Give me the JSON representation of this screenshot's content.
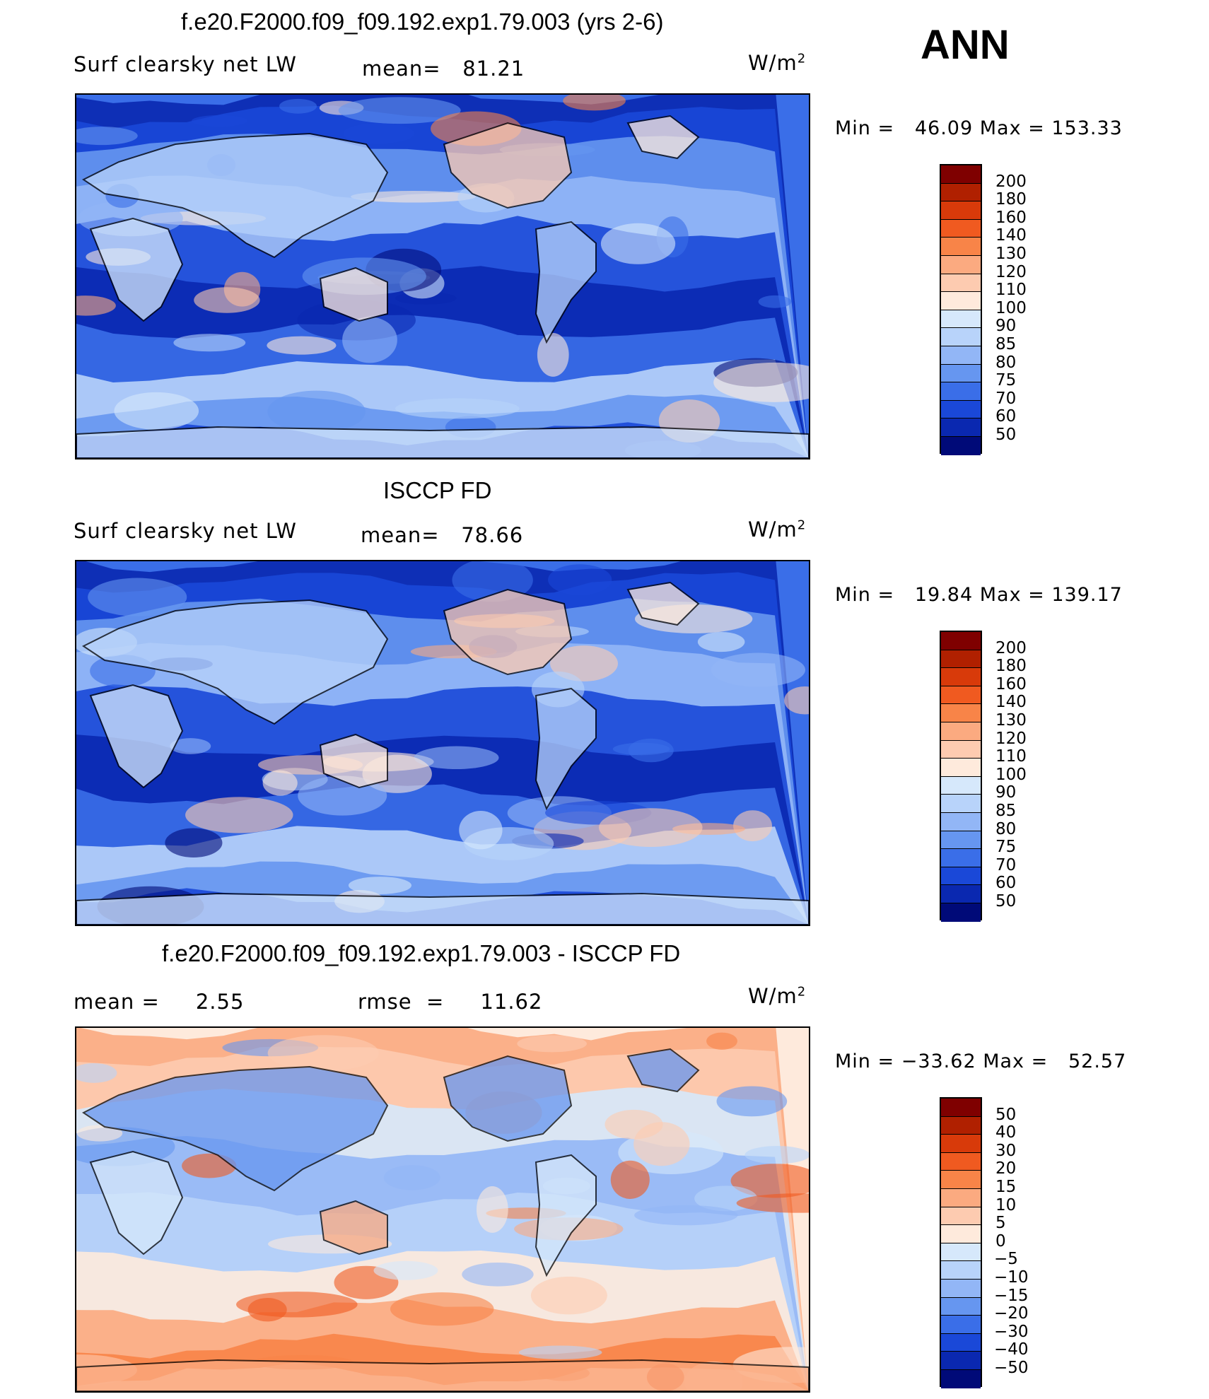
{
  "season": "ANN",
  "panels": [
    {
      "title": "f.e20.F2000.f09_f09.192.exp1.79.003 (yrs 2-6)",
      "left_label": "Surf clearsky net LW",
      "center_label": "mean=   81.21",
      "units": "W/m",
      "units_sup": "2",
      "minmax": "Min =   46.09 Max = 153.33",
      "colorbar": {
        "levels": [
          "200",
          "180",
          "160",
          "140",
          "130",
          "120",
          "110",
          "100",
          "90",
          "85",
          "80",
          "75",
          "70",
          "60",
          "50"
        ],
        "colors": [
          "#7f0000",
          "#b02000",
          "#d83a0a",
          "#f05a20",
          "#f88448",
          "#fbaa80",
          "#fdcbb0",
          "#feeadc",
          "#d6e8fb",
          "#b8d3fa",
          "#92b6f6",
          "#6696f0",
          "#3a6ee8",
          "#1a48d8",
          "#0a28b0",
          "#000a78"
        ]
      },
      "field_palette": [
        "#000a78",
        "#0a28b0",
        "#1a48d8",
        "#3a6ee8",
        "#6696f0",
        "#92b6f6",
        "#b8d3fa",
        "#d6e8fb",
        "#feeadc",
        "#fdcbb0",
        "#fbaa80",
        "#f88448"
      ]
    },
    {
      "title": "ISCCP FD",
      "left_label": "Surf clearsky net LW",
      "center_label": "mean=   78.66",
      "units": "W/m",
      "units_sup": "2",
      "minmax": "Min =   19.84 Max = 139.17",
      "colorbar": {
        "levels": [
          "200",
          "180",
          "160",
          "140",
          "130",
          "120",
          "110",
          "100",
          "90",
          "85",
          "80",
          "75",
          "70",
          "60",
          "50"
        ],
        "colors": [
          "#7f0000",
          "#b02000",
          "#d83a0a",
          "#f05a20",
          "#f88448",
          "#fbaa80",
          "#fdcbb0",
          "#feeadc",
          "#d6e8fb",
          "#b8d3fa",
          "#92b6f6",
          "#6696f0",
          "#3a6ee8",
          "#1a48d8",
          "#0a28b0",
          "#000a78"
        ]
      },
      "field_palette": [
        "#000a78",
        "#0a28b0",
        "#1a48d8",
        "#3a6ee8",
        "#6696f0",
        "#92b6f6",
        "#b8d3fa",
        "#d6e8fb",
        "#feeadc",
        "#fdcbb0",
        "#fbaa80"
      ]
    },
    {
      "title": "f.e20.F2000.f09_f09.192.exp1.79.003 - ISCCP FD",
      "left_label": "mean =     2.55",
      "center_label": "rmse  =     11.62",
      "units": "W/m",
      "units_sup": "2",
      "minmax": "Min = −33.62 Max =   52.57",
      "colorbar": {
        "levels": [
          "50",
          "40",
          "30",
          "20",
          "15",
          "10",
          "5",
          "0",
          "−5",
          "−10",
          "−15",
          "−20",
          "−30",
          "−40",
          "−50"
        ],
        "colors": [
          "#7f0000",
          "#b02000",
          "#d83a0a",
          "#f05a20",
          "#f88448",
          "#fbaa80",
          "#fdcbb0",
          "#feeadc",
          "#d6e8fb",
          "#b8d3fa",
          "#92b6f6",
          "#6696f0",
          "#3a6ee8",
          "#1a48d8",
          "#0a28b0",
          "#000a78"
        ]
      },
      "field_palette": [
        "#6696f0",
        "#92b6f6",
        "#b8d3fa",
        "#d6e8fb",
        "#feeadc",
        "#fdcbb0",
        "#fbaa80",
        "#f88448",
        "#f05a20"
      ]
    }
  ],
  "chart_data": [
    {
      "type": "heatmap",
      "title": "f.e20.F2000.f09_f09.192.exp1.79.003 (yrs 2-6)",
      "variable": "Surf clearsky net LW",
      "units": "W/m2",
      "mean": 81.21,
      "min": 46.09,
      "max": 153.33,
      "levels": [
        50,
        60,
        70,
        75,
        80,
        85,
        90,
        100,
        110,
        120,
        130,
        140,
        160,
        180,
        200
      ]
    },
    {
      "type": "heatmap",
      "title": "ISCCP FD",
      "variable": "Surf clearsky net LW",
      "units": "W/m2",
      "mean": 78.66,
      "min": 19.84,
      "max": 139.17,
      "levels": [
        50,
        60,
        70,
        75,
        80,
        85,
        90,
        100,
        110,
        120,
        130,
        140,
        160,
        180,
        200
      ]
    },
    {
      "type": "heatmap",
      "title": "f.e20.F2000.f09_f09.192.exp1.79.003 - ISCCP FD",
      "units": "W/m2",
      "mean": 2.55,
      "rmse": 11.62,
      "min": -33.62,
      "max": 52.57,
      "levels": [
        -50,
        -40,
        -30,
        -20,
        -15,
        -10,
        -5,
        0,
        5,
        10,
        15,
        20,
        30,
        40,
        50
      ]
    }
  ]
}
